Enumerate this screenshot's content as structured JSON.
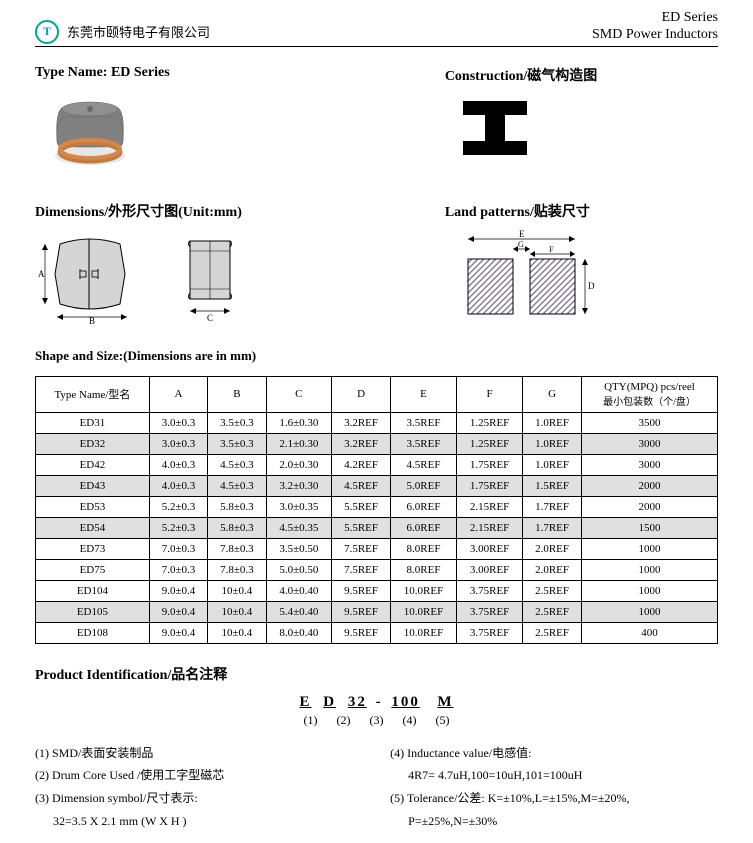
{
  "header": {
    "company": "东莞市颐特电子有限公司",
    "series": "ED Series",
    "product": "SMD Power Inductors"
  },
  "section1": {
    "type_name_label": "Type Name: ED Series",
    "construction_label": "Construction/磁气构造图"
  },
  "section2": {
    "dimensions_label": "Dimensions/外形尺寸图(Unit:mm)",
    "land_label": "Land patterns/贴装尺寸"
  },
  "shape_size_label": "Shape and Size:(Dimensions are in mm)",
  "table": {
    "headers": {
      "type": "Type Name/型名",
      "A": "A",
      "B": "B",
      "C": "C",
      "D": "D",
      "E": "E",
      "F": "F",
      "G": "G",
      "qty1": "QTY(MPQ) pcs/reel",
      "qty2": "最小包装数（个/盘）"
    },
    "rows": [
      {
        "shaded": false,
        "cells": [
          "ED31",
          "3.0±0.3",
          "3.5±0.3",
          "1.6±0.30",
          "3.2REF",
          "3.5REF",
          "1.25REF",
          "1.0REF",
          "3500"
        ]
      },
      {
        "shaded": true,
        "cells": [
          "ED32",
          "3.0±0.3",
          "3.5±0.3",
          "2.1±0.30",
          "3.2REF",
          "3.5REF",
          "1.25REF",
          "1.0REF",
          "3000"
        ]
      },
      {
        "shaded": false,
        "cells": [
          "ED42",
          "4.0±0.3",
          "4.5±0.3",
          "2.0±0.30",
          "4.2REF",
          "4.5REF",
          "1.75REF",
          "1.0REF",
          "3000"
        ]
      },
      {
        "shaded": true,
        "cells": [
          "ED43",
          "4.0±0.3",
          "4.5±0.3",
          "3.2±0.30",
          "4.5REF",
          "5.0REF",
          "1.75REF",
          "1.5REF",
          "2000"
        ]
      },
      {
        "shaded": false,
        "cells": [
          "ED53",
          "5.2±0.3",
          "5.8±0.3",
          "3.0±0.35",
          "5.5REF",
          "6.0REF",
          "2.15REF",
          "1.7REF",
          "2000"
        ]
      },
      {
        "shaded": true,
        "cells": [
          "ED54",
          "5.2±0.3",
          "5.8±0.3",
          "4.5±0.35",
          "5.5REF",
          "6.0REF",
          "2.15REF",
          "1.7REF",
          "1500"
        ]
      },
      {
        "shaded": false,
        "cells": [
          "ED73",
          "7.0±0.3",
          "7.8±0.3",
          "3.5±0.50",
          "7.5REF",
          "8.0REF",
          "3.00REF",
          "2.0REF",
          "1000"
        ]
      },
      {
        "shaded": false,
        "cells": [
          "ED75",
          "7.0±0.3",
          "7.8±0.3",
          "5.0±0.50",
          "7.5REF",
          "8.0REF",
          "3.00REF",
          "2.0REF",
          "1000"
        ]
      },
      {
        "shaded": false,
        "cells": [
          "ED104",
          "9.0±0.4",
          "10±0.4",
          "4.0±0.40",
          "9.5REF",
          "10.0REF",
          "3.75REF",
          "2.5REF",
          "1000"
        ]
      },
      {
        "shaded": true,
        "cells": [
          "ED105",
          "9.0±0.4",
          "10±0.4",
          "5.4±0.40",
          "9.5REF",
          "10.0REF",
          "3.75REF",
          "2.5REF",
          "1000"
        ]
      },
      {
        "shaded": false,
        "cells": [
          "ED108",
          "9.0±0.4",
          "10±0.4",
          "8.0±0.40",
          "9.5REF",
          "10.0REF",
          "3.75REF",
          "2.5REF",
          "400"
        ]
      }
    ]
  },
  "prod_id": {
    "title": "Product Identification/品名注释",
    "code_parts": [
      "E",
      "D",
      "32",
      "100",
      "M"
    ],
    "num_parts": [
      "(1)",
      "(2)",
      "(3)",
      "(4)",
      "(5)"
    ],
    "left": {
      "l1": "(1) SMD/表面安装制品",
      "l2": "(2) Drum Core Used /使用工字型磁芯",
      "l3": "(3) Dimension symbol/尺寸表示:",
      "l3a": "32=3.5 X 2.1 mm (W X H )"
    },
    "right": {
      "r1": "(4) Inductance value/电感值:",
      "r1a": "4R7= 4.7uH,100=10uH,101=100uH",
      "r2": "(5) Tolerance/公差: K=±10%,L=±15%,M=±20%,",
      "r2a": "P=±25%,N=±30%"
    }
  },
  "colors": {
    "logo": "#00a0a0",
    "ferrite": "#6b6b6b",
    "coil": "#c97a3a",
    "hatch": "#7a6a8a"
  }
}
